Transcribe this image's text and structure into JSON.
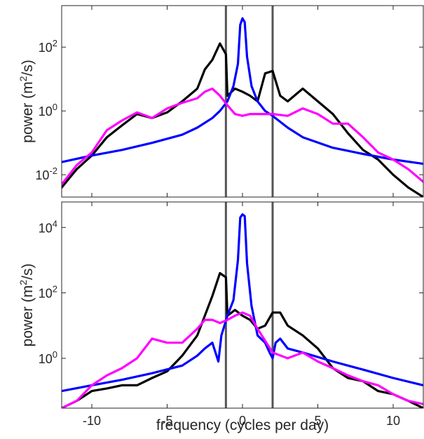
{
  "xlabel": "frequency (cycles per day)",
  "colors": {
    "black": "#000000",
    "blue": "#0000ff",
    "magenta": "#ff00ff",
    "vline": "#555555",
    "axis": "#262626"
  },
  "chart_data": [
    {
      "type": "line",
      "id": "top",
      "ylabel": "power (m²/s)",
      "xlim": [
        -12,
        12
      ],
      "yscale": "log",
      "ylim": [
        0.002,
        2000
      ],
      "yticks": [
        0.01,
        1,
        100
      ],
      "ytick_labels": [
        "10^-2",
        "10^0",
        "10^2"
      ],
      "xticks": [
        -10,
        -5,
        0,
        5,
        10
      ],
      "vlines": [
        -1.1,
        2.0
      ],
      "series": [
        {
          "color": "#000000",
          "x": [
            -12,
            -11,
            -10,
            -9,
            -8,
            -7,
            -6,
            -5,
            -4,
            -3,
            -2.5,
            -2,
            -1.5,
            -1.1,
            -1,
            -0.5,
            0,
            0.5,
            1,
            1.5,
            2,
            2.5,
            3,
            4,
            5,
            6,
            7,
            8,
            9,
            10,
            11,
            12
          ],
          "y": [
            0.004,
            0.015,
            0.04,
            0.15,
            0.35,
            0.8,
            0.6,
            0.9,
            2,
            5,
            20,
            40,
            130,
            60,
            3,
            5,
            4,
            3,
            2,
            15,
            18,
            3,
            2,
            5,
            2,
            0.8,
            0.2,
            0.06,
            0.03,
            0.01,
            0.004,
            0.002
          ]
        },
        {
          "color": "#0000ff",
          "x": [
            -12,
            -10,
            -8,
            -6,
            -4,
            -3,
            -2,
            -1.5,
            -1,
            -0.6,
            -0.3,
            -0.15,
            0,
            0.15,
            0.3,
            0.6,
            1,
            1.5,
            2,
            3,
            4,
            6,
            8,
            10,
            12
          ],
          "y": [
            0.025,
            0.04,
            0.06,
            0.1,
            0.18,
            0.3,
            0.6,
            1,
            2,
            6,
            30,
            500,
            800,
            600,
            50,
            6,
            2,
            1,
            0.7,
            0.3,
            0.15,
            0.07,
            0.045,
            0.03,
            0.022
          ]
        },
        {
          "color": "#ff00ff",
          "x": [
            -12,
            -11,
            -10,
            -9,
            -8,
            -7,
            -6,
            -5,
            -4,
            -3,
            -2.5,
            -2,
            -1.5,
            -1,
            -0.5,
            0,
            0.5,
            1,
            2,
            3,
            4,
            5,
            6,
            7,
            8,
            9,
            10,
            11,
            12
          ],
          "y": [
            0.005,
            0.02,
            0.05,
            0.25,
            0.5,
            0.9,
            0.6,
            1.2,
            1.8,
            2.5,
            4,
            5,
            3,
            1.5,
            0.8,
            0.7,
            0.8,
            0.8,
            0.8,
            0.7,
            1.2,
            0.8,
            0.4,
            0.4,
            0.15,
            0.05,
            0.03,
            0.015,
            0.006
          ]
        }
      ]
    },
    {
      "type": "line",
      "id": "bottom",
      "ylabel": "power (m²/s)",
      "xlim": [
        -12,
        12
      ],
      "yscale": "log",
      "ylim": [
        0.03,
        60000
      ],
      "yticks": [
        1,
        100,
        10000
      ],
      "ytick_labels": [
        "10^0",
        "10^2",
        "10^4"
      ],
      "xticks": [
        -10,
        -5,
        0,
        5,
        10
      ],
      "xtick_labels": [
        "-10",
        "-5",
        "0",
        "5",
        "10"
      ],
      "vlines": [
        -1.1,
        2.0
      ],
      "series": [
        {
          "color": "#000000",
          "x": [
            -12,
            -11,
            -10,
            -9,
            -8,
            -7,
            -6,
            -5,
            -4,
            -3,
            -2.5,
            -2,
            -1.5,
            -1.1,
            -1,
            -0.5,
            0,
            0.5,
            1,
            1.5,
            2,
            2.5,
            3,
            4,
            5,
            6,
            7,
            8,
            9,
            10,
            11,
            12
          ],
          "y": [
            0.03,
            0.05,
            0.1,
            0.12,
            0.15,
            0.15,
            0.25,
            0.4,
            1.2,
            5,
            20,
            80,
            400,
            300,
            20,
            30,
            20,
            15,
            8,
            10,
            25,
            25,
            10,
            5,
            2,
            0.5,
            0.25,
            0.2,
            0.1,
            0.08,
            0.05,
            0.03
          ]
        },
        {
          "color": "#0000ff",
          "x": [
            -12,
            -10,
            -8,
            -6,
            -4,
            -3,
            -2.5,
            -2,
            -1.6,
            -1.4,
            -1,
            -0.6,
            -0.3,
            -0.15,
            0,
            0.15,
            0.3,
            0.6,
            1,
            1.5,
            1.8,
            2,
            2.2,
            2.5,
            3,
            4,
            6,
            8,
            10,
            12
          ],
          "y": [
            0.1,
            0.15,
            0.22,
            0.35,
            0.6,
            1.2,
            2,
            3,
            0.8,
            5,
            20,
            60,
            1000,
            20000,
            25000,
            22000,
            800,
            40,
            5,
            3,
            1.5,
            1,
            3,
            4,
            2,
            1.5,
            0.8,
            0.45,
            0.25,
            0.15
          ]
        },
        {
          "color": "#ff00ff",
          "x": [
            -12,
            -11,
            -10,
            -9,
            -8,
            -7,
            -6,
            -5,
            -4,
            -3,
            -2.5,
            -2,
            -1.5,
            -1,
            -0.5,
            0,
            0.5,
            1,
            2,
            3,
            4,
            5,
            6,
            7,
            8,
            9,
            10,
            11,
            12
          ],
          "y": [
            0.03,
            0.05,
            0.15,
            0.3,
            0.5,
            1,
            4,
            3,
            3,
            8,
            15,
            15,
            12,
            15,
            20,
            25,
            20,
            8,
            1.5,
            1,
            1.5,
            0.8,
            0.5,
            0.3,
            0.2,
            0.15,
            0.08,
            0.05,
            0.04
          ]
        }
      ]
    }
  ]
}
